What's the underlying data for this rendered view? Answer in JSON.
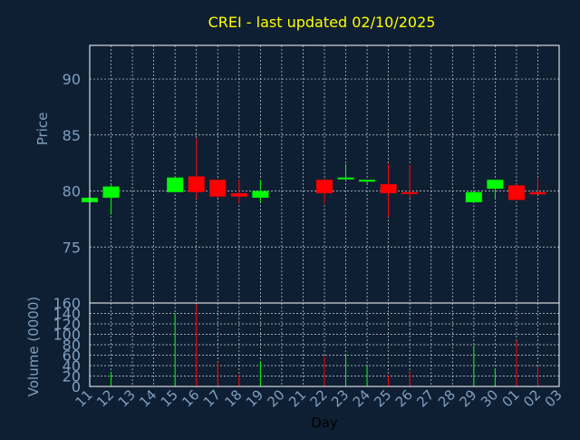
{
  "title": "CREI - last updated 02/10/2025",
  "colors": {
    "background": "#0f1f33",
    "title": "#ffff00",
    "axis_text": "#7f9fc0",
    "frame": "#ffffff",
    "grid": "#ffffff",
    "up": "#00ff00",
    "down": "#ff0000"
  },
  "chart_data": [
    {
      "type": "candlestick",
      "ylabel": "Price",
      "ylim": [
        70,
        93
      ],
      "yticks": [
        75,
        80,
        85,
        90
      ],
      "grid": true,
      "x_days": [
        "11",
        "12",
        "13",
        "14",
        "15",
        "16",
        "17",
        "18",
        "19",
        "20",
        "21",
        "22",
        "23",
        "24",
        "25",
        "26",
        "27",
        "28",
        "29",
        "30",
        "01",
        "02",
        "03"
      ],
      "candles": [
        {
          "day": "11",
          "open": 79.0,
          "close": 79.4,
          "high": 79.4,
          "low": 78.9
        },
        {
          "day": "12",
          "open": 79.4,
          "close": 80.4,
          "high": 80.6,
          "low": 77.9
        },
        {
          "day": "15",
          "open": 79.9,
          "close": 81.2,
          "high": 81.2,
          "low": 79.9
        },
        {
          "day": "16",
          "open": 81.3,
          "close": 79.9,
          "high": 84.7,
          "low": 79.3
        },
        {
          "day": "17",
          "open": 81.0,
          "close": 79.5,
          "high": 81.0,
          "low": 79.4
        },
        {
          "day": "18",
          "open": 79.8,
          "close": 79.5,
          "high": 81.0,
          "low": 78.9
        },
        {
          "day": "19",
          "open": 79.4,
          "close": 80.0,
          "high": 81.0,
          "low": 79.0
        },
        {
          "day": "22",
          "open": 81.0,
          "close": 79.8,
          "high": 81.1,
          "low": 78.9
        },
        {
          "day": "23",
          "open": 81.1,
          "close": 81.2,
          "high": 82.4,
          "low": 81.1
        },
        {
          "day": "24",
          "open": 80.9,
          "close": 81.0,
          "high": 81.0,
          "low": 80.7
        },
        {
          "day": "25",
          "open": 80.6,
          "close": 79.8,
          "high": 82.4,
          "low": 77.7
        },
        {
          "day": "26",
          "open": 79.9,
          "close": 79.8,
          "high": 82.3,
          "low": 79.4
        },
        {
          "day": "29",
          "open": 79.0,
          "close": 79.9,
          "high": 79.9,
          "low": 79.0
        },
        {
          "day": "30",
          "open": 80.2,
          "close": 81.0,
          "high": 81.0,
          "low": 79.3
        },
        {
          "day": "01",
          "open": 80.5,
          "close": 79.2,
          "high": 80.6,
          "low": 79.2
        },
        {
          "day": "02",
          "open": 79.9,
          "close": 79.7,
          "high": 81.1,
          "low": 79.7
        }
      ]
    },
    {
      "type": "bar",
      "ylabel": "Volume (0000)",
      "xlabel": "Day",
      "ylim": [
        0,
        160
      ],
      "yticks": [
        0,
        20,
        40,
        60,
        80,
        100,
        120,
        140,
        160
      ],
      "grid": true,
      "x_days": [
        "11",
        "12",
        "13",
        "14",
        "15",
        "16",
        "17",
        "18",
        "19",
        "20",
        "21",
        "22",
        "23",
        "24",
        "25",
        "26",
        "27",
        "28",
        "29",
        "30",
        "01",
        "02",
        "03"
      ],
      "bars": [
        {
          "day": "11",
          "value": 0,
          "direction": "up"
        },
        {
          "day": "12",
          "value": 28,
          "direction": "up"
        },
        {
          "day": "15",
          "value": 140,
          "direction": "up"
        },
        {
          "day": "16",
          "value": 158,
          "direction": "down"
        },
        {
          "day": "17",
          "value": 47,
          "direction": "down"
        },
        {
          "day": "18",
          "value": 22,
          "direction": "down"
        },
        {
          "day": "19",
          "value": 48,
          "direction": "up"
        },
        {
          "day": "22",
          "value": 58,
          "direction": "down"
        },
        {
          "day": "23",
          "value": 62,
          "direction": "up"
        },
        {
          "day": "24",
          "value": 40,
          "direction": "up"
        },
        {
          "day": "25",
          "value": 22,
          "direction": "down"
        },
        {
          "day": "26",
          "value": 30,
          "direction": "down"
        },
        {
          "day": "29",
          "value": 78,
          "direction": "up"
        },
        {
          "day": "30",
          "value": 35,
          "direction": "up"
        },
        {
          "day": "01",
          "value": 88,
          "direction": "down"
        },
        {
          "day": "02",
          "value": 38,
          "direction": "down"
        }
      ]
    }
  ]
}
